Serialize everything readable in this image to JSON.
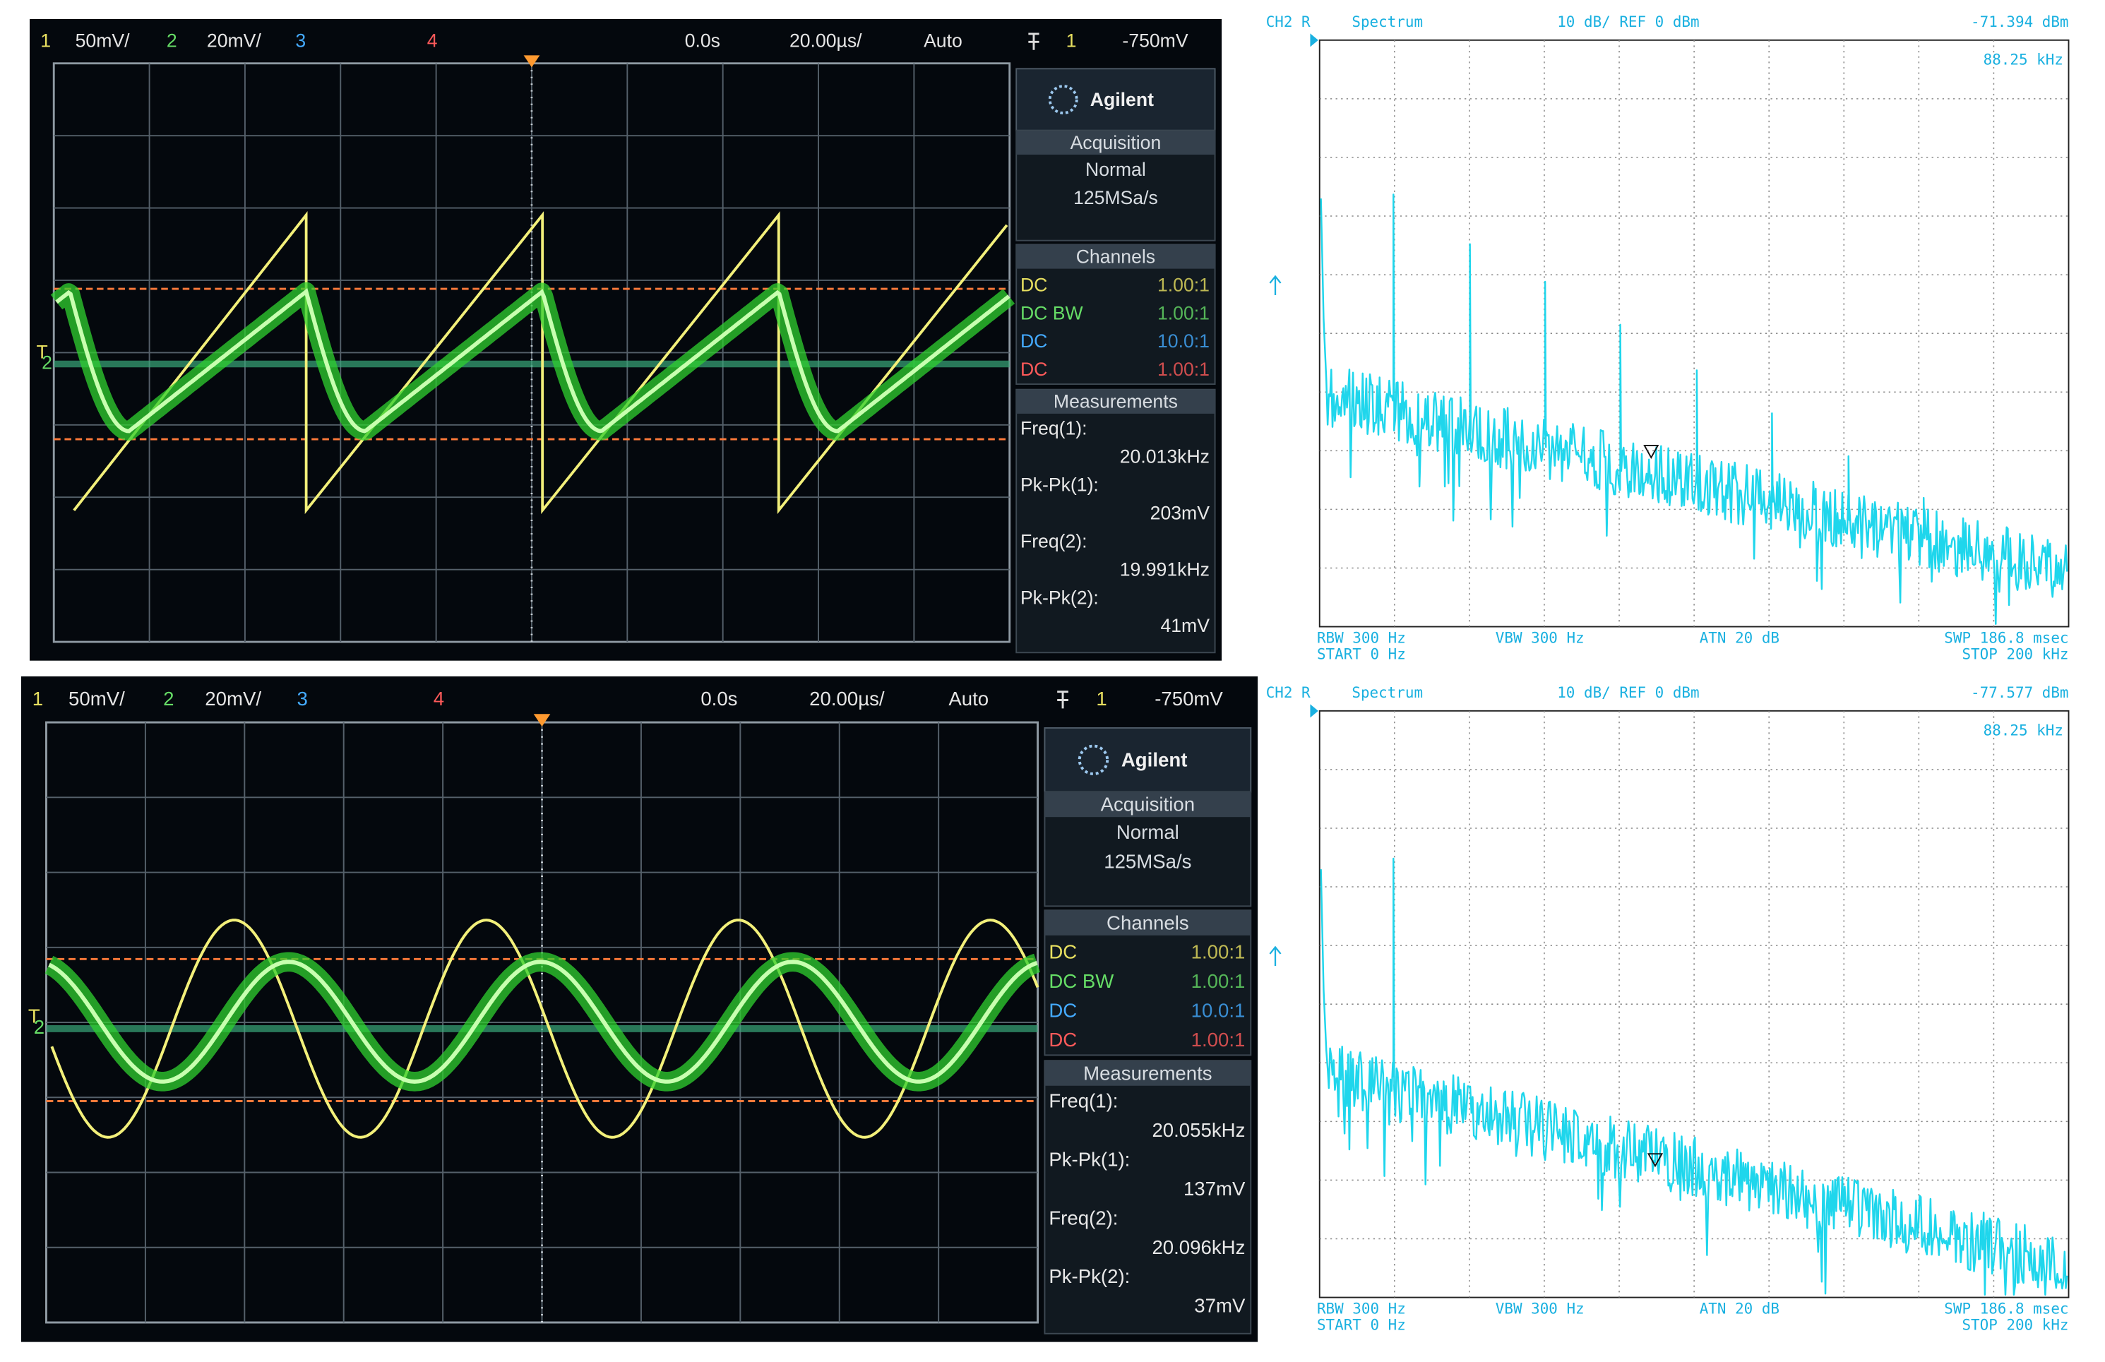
{
  "oscilloscopes": [
    {
      "header": {
        "ch1_label": "1",
        "ch1_scale": "50mV/",
        "ch2_label": "2",
        "ch2_scale": "20mV/",
        "ch3_label": "3",
        "ch4_label": "4",
        "time_offset": "0.0s",
        "time_scale": "20.00µs/",
        "trigger_mode": "Auto",
        "trigger_source": "1",
        "trigger_level": "-750mV"
      },
      "channel_marker": "2",
      "trigger_marker": "T",
      "brand": "Agilent",
      "acquisition": {
        "title": "Acquisition",
        "mode": "Normal",
        "rate": "125MSa/s"
      },
      "channels": {
        "title": "Channels",
        "rows": [
          {
            "coupling": "DC",
            "probe": "1.00:1"
          },
          {
            "coupling": "DC BW",
            "probe": "1.00:1"
          },
          {
            "coupling": "DC",
            "probe": "10.0:1"
          },
          {
            "coupling": "DC",
            "probe": "1.00:1"
          }
        ]
      },
      "measurements": {
        "title": "Measurements",
        "items": [
          {
            "label": "Freq(1):",
            "value": "20.013kHz"
          },
          {
            "label": "Pk-Pk(1):",
            "value": "203mV"
          },
          {
            "label": "Freq(2):",
            "value": "19.991kHz"
          },
          {
            "label": "Pk-Pk(2):",
            "value": "41mV"
          }
        ]
      }
    },
    {
      "header": {
        "ch1_label": "1",
        "ch1_scale": "50mV/",
        "ch2_label": "2",
        "ch2_scale": "20mV/",
        "ch3_label": "3",
        "ch4_label": "4",
        "time_offset": "0.0s",
        "time_scale": "20.00µs/",
        "trigger_mode": "Auto",
        "trigger_source": "1",
        "trigger_level": "-750mV"
      },
      "channel_marker": "2",
      "trigger_marker": "T",
      "brand": "Agilent",
      "acquisition": {
        "title": "Acquisition",
        "mode": "Normal",
        "rate": "125MSa/s"
      },
      "channels": {
        "title": "Channels",
        "rows": [
          {
            "coupling": "DC",
            "probe": "1.00:1"
          },
          {
            "coupling": "DC BW",
            "probe": "1.00:1"
          },
          {
            "coupling": "DC",
            "probe": "10.0:1"
          },
          {
            "coupling": "DC",
            "probe": "1.00:1"
          }
        ]
      },
      "measurements": {
        "title": "Measurements",
        "items": [
          {
            "label": "Freq(1):",
            "value": "20.055kHz"
          },
          {
            "label": "Pk-Pk(1):",
            "value": "137mV"
          },
          {
            "label": "Freq(2):",
            "value": "20.096kHz"
          },
          {
            "label": "Pk-Pk(2):",
            "value": "37mV"
          }
        ]
      }
    }
  ],
  "spectra": [
    {
      "channel": "CH2 R",
      "mode": "Spectrum",
      "scale": "10 dB/ REF 0 dBm",
      "marker_level": "-71.394 dBm",
      "marker_freq": "88.25 kHz",
      "rbw": "RBW  300 Hz",
      "vbw": "VBW  300 Hz",
      "atn": "ATN  20 dB",
      "swp": "SWP  186.8 msec",
      "start": "START  0 Hz",
      "stop": "STOP  200 kHz"
    },
    {
      "channel": "CH2 R",
      "mode": "Spectrum",
      "scale": "10 dB/ REF 0 dBm",
      "marker_level": "-77.577 dBm",
      "marker_freq": "88.25 kHz",
      "rbw": "RBW  300 Hz",
      "vbw": "VBW  300 Hz",
      "atn": "ATN  20 dB",
      "swp": "SWP  186.8 msec",
      "start": "START  0 Hz",
      "stop": "STOP  200 kHz"
    }
  ]
}
